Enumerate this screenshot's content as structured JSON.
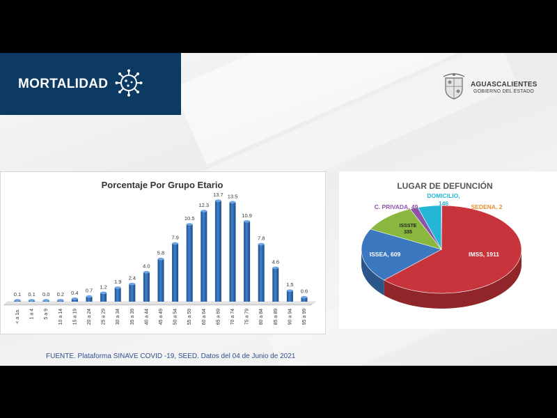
{
  "header": {
    "title": "MORTALIDAD",
    "logo_name": "AGUASCALIENTES",
    "logo_sub": "GOBIERNO DEL ESTADO"
  },
  "colors": {
    "banner": "#0d3a63",
    "bar": "#2e6db5",
    "imss": "#c8343b",
    "issea": "#3c78c0",
    "issste": "#8ab83e",
    "domicilio": "#25b6d6",
    "privada": "#8e52a8",
    "sedena": "#e88f2c"
  },
  "footer": {
    "source": "FUENTE. Plataforma SINAVE COVID -19, SEED. Datos del 04 de Junio de 2021"
  },
  "chart_data": [
    {
      "type": "bar",
      "title": "Porcentaje Por Grupo Etario",
      "categories": [
        "< a 1a.",
        "1 a 4",
        "5 a 9",
        "10 a 14",
        "15 a 19",
        "20 a 24",
        "25 a 29",
        "30 a 34",
        "35 a 39",
        "40 a 44",
        "45 a 49",
        "50 a 54",
        "55 a 59",
        "60 a 64",
        "65 a 69",
        "70 a 74",
        "75 a 79",
        "80 a 84",
        "85 a 89",
        "90 a 94",
        "95 a 99"
      ],
      "values": [
        0.1,
        0.1,
        0.0,
        0.2,
        0.4,
        0.7,
        1.2,
        1.9,
        2.4,
        4.0,
        5.8,
        7.9,
        10.5,
        12.3,
        13.7,
        13.5,
        10.9,
        7.8,
        4.6,
        1.5,
        0.6
      ],
      "labels": [
        "0.1",
        "0.1",
        "0.0",
        "0.2",
        "0.4",
        "0.7",
        "1.2",
        "1.9",
        "2.4",
        "4.0",
        "5.8",
        "7.9",
        "10.5",
        "12.3",
        "13.7",
        "13.5",
        "10.9",
        "7.8",
        "4.6",
        "1.5",
        "0.6"
      ],
      "ylim": [
        0,
        14
      ],
      "grid": false,
      "legend": "none"
    },
    {
      "type": "pie",
      "title": "LUGAR DE DEFUNCIÓN",
      "slices": [
        {
          "name": "IMSS",
          "value": 1911,
          "label": "IMSS, 1911",
          "color": "#c8343b"
        },
        {
          "name": "ISSEA",
          "value": 609,
          "label": "ISSEA, 609",
          "color": "#3c78c0"
        },
        {
          "name": "ISSSTE",
          "value": 335,
          "label": "ISSSTE\n335",
          "color": "#8ab83e"
        },
        {
          "name": "C. PRIVADA",
          "value": 49,
          "label": "C. PRIVADA, 49",
          "color": "#8e52a8"
        },
        {
          "name": "DOMICILIO",
          "value": 146,
          "label": "DOMICILIO,\n146",
          "color": "#25b6d6"
        },
        {
          "name": "SEDENA",
          "value": 2,
          "label": "SEDENA, 2",
          "color": "#e88f2c"
        }
      ],
      "legend": "none"
    }
  ]
}
